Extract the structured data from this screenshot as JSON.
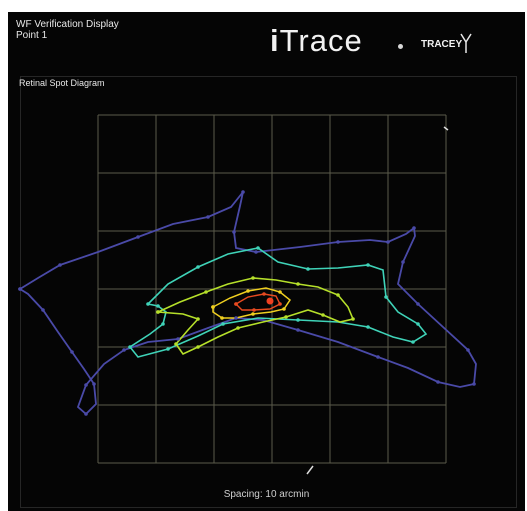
{
  "window": {
    "title": "WF Verification Display",
    "point_label": "Point 1"
  },
  "logo": {
    "name_prefix": "i",
    "name_rest": "Trace",
    "company": "TRACEY"
  },
  "panel": {
    "title": "Retinal Spot Diagram"
  },
  "grid": {
    "spacing_text": "Spacing: 10 arcmin",
    "divisions": 6
  },
  "colors": {
    "background": "#050505",
    "grid": "#5a5a4a",
    "outer_trace": "#4a4aa8",
    "cyan_trace": "#3fd3b8",
    "yellow_green_trace": "#b6e02a",
    "yellow_trace": "#f0d020",
    "red_trace": "#e84a20"
  }
}
